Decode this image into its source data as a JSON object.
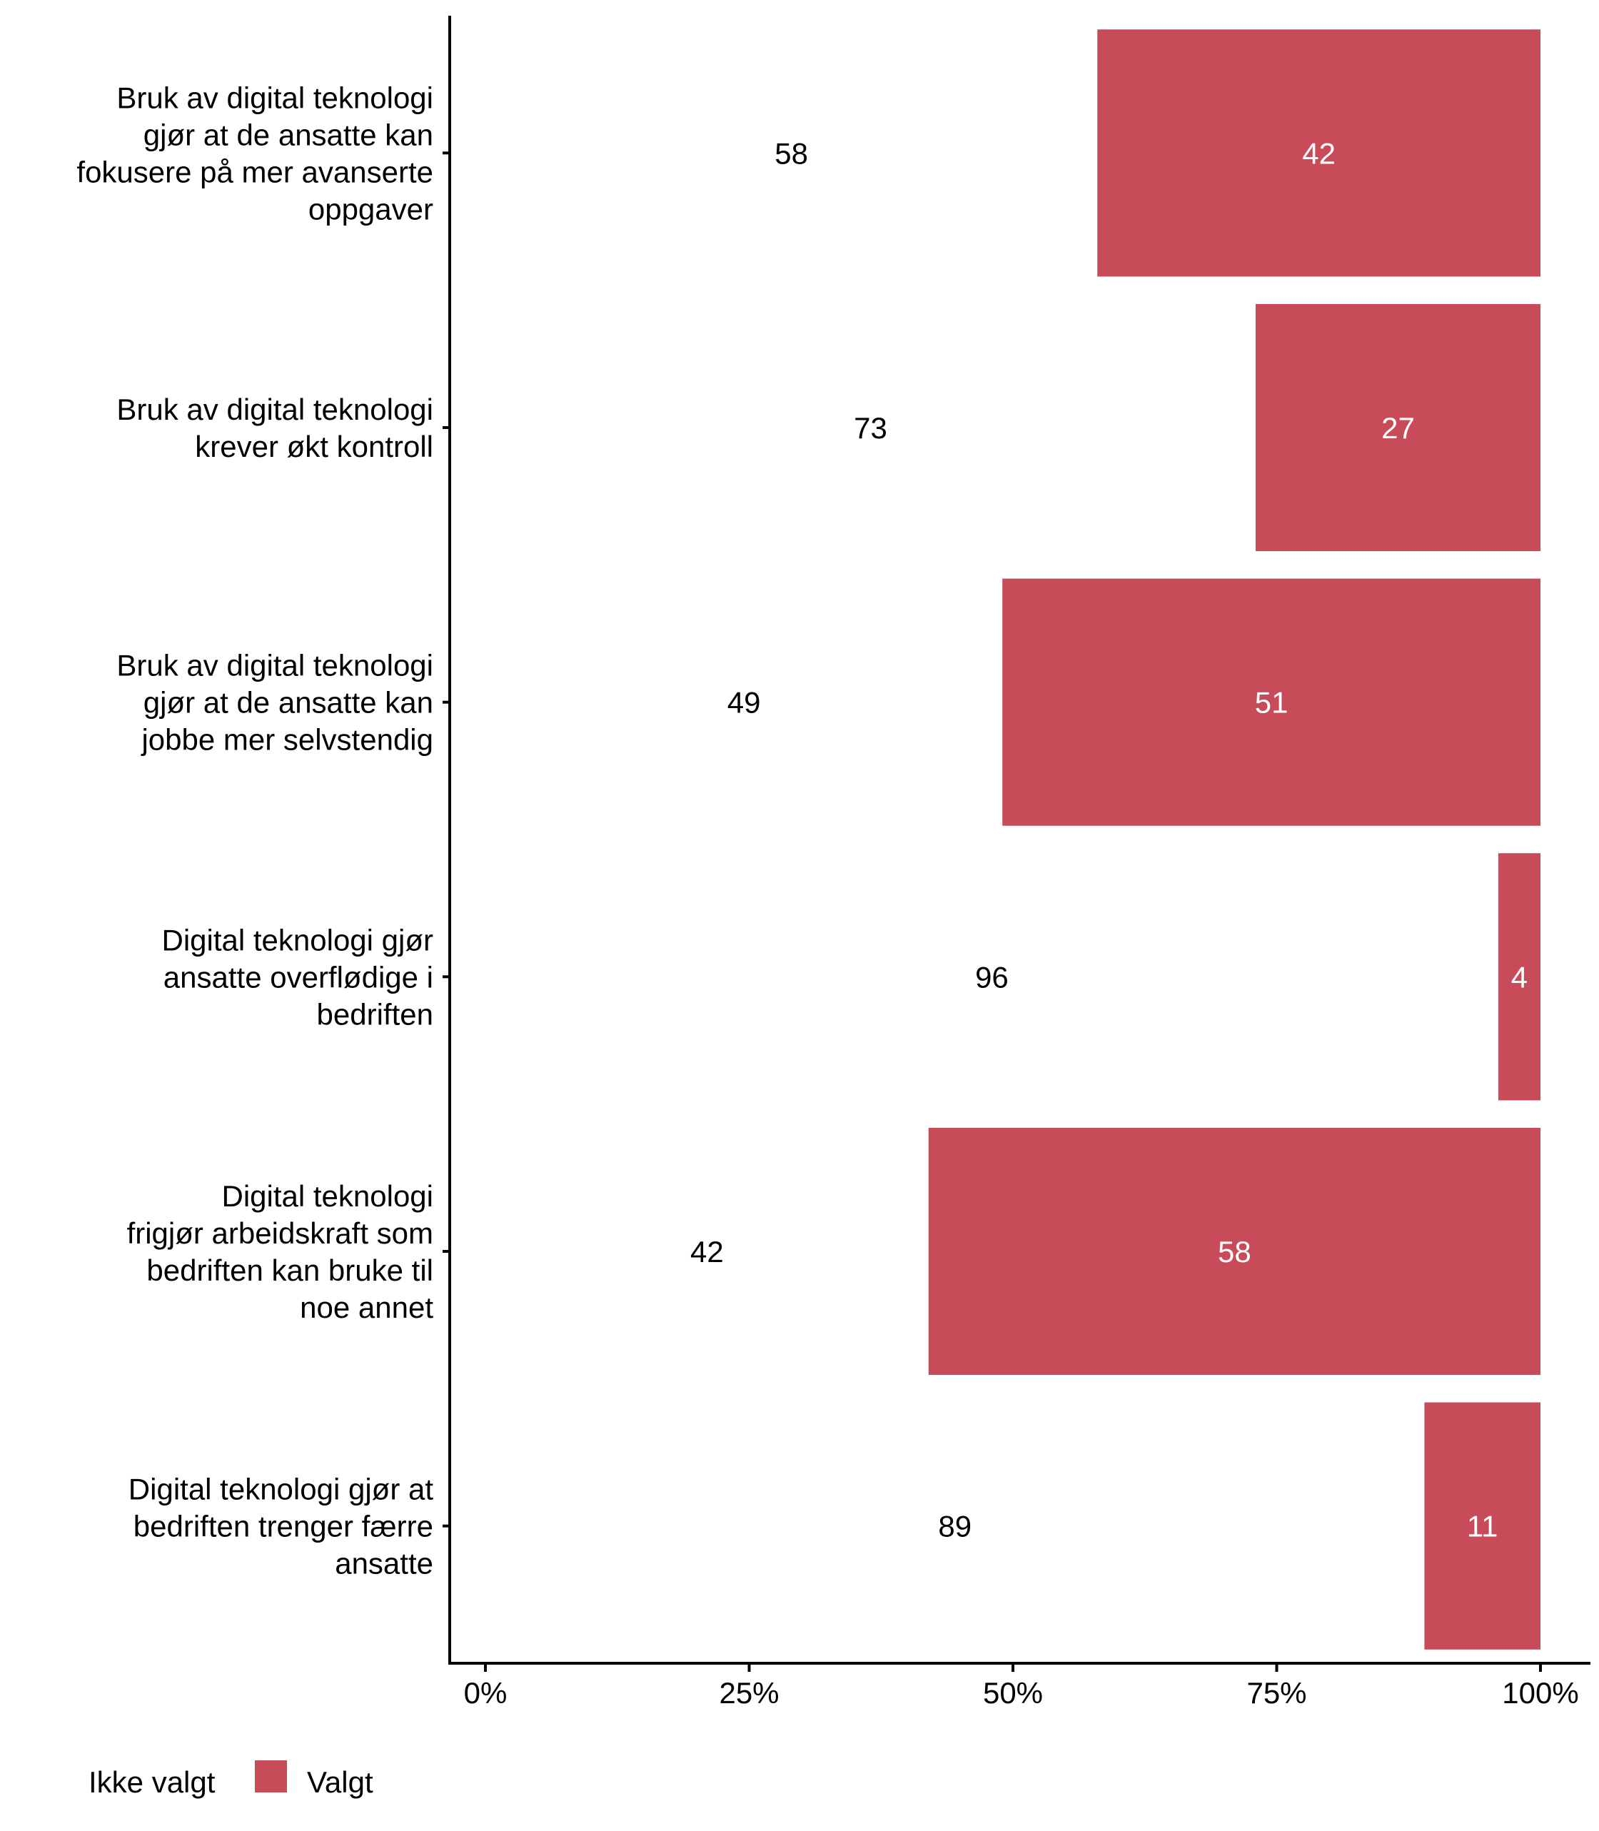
{
  "chart_data": {
    "type": "bar",
    "orientation": "horizontal",
    "stacked": true,
    "categories": [
      [
        "Bruk av digital teknologi",
        "gjør at de ansatte kan",
        "fokusere på mer avanserte",
        "oppgaver"
      ],
      [
        "Bruk av digital teknologi",
        "krever økt kontroll"
      ],
      [
        "Bruk av digital teknologi",
        "gjør at de ansatte kan",
        "jobbe mer selvstendig"
      ],
      [
        "Digital teknologi gjør",
        "ansatte overflødige i",
        "bedriften"
      ],
      [
        "Digital teknologi",
        "frigjør arbeidskraft som",
        "bedriften kan bruke til",
        "noe annet"
      ],
      [
        "Digital teknologi gjør at",
        "bedriften trenger færre",
        "ansatte"
      ]
    ],
    "series": [
      {
        "name": "Ikke valgt",
        "color": "#ffffff",
        "label_color": "#000000",
        "values": [
          58,
          73,
          49,
          96,
          42,
          89
        ]
      },
      {
        "name": "Valgt",
        "color": "#c84b5a",
        "label_color": "#ffffff",
        "values": [
          42,
          27,
          51,
          4,
          58,
          11
        ]
      }
    ],
    "xlim": [
      0,
      100
    ],
    "xticks": [
      0,
      25,
      50,
      75,
      100
    ],
    "xtick_labels": [
      "0%",
      "25%",
      "50%",
      "75%",
      "100%"
    ],
    "xlabel": "",
    "ylabel": "",
    "title": "",
    "grid": false,
    "legend_position": "bottom-left"
  }
}
